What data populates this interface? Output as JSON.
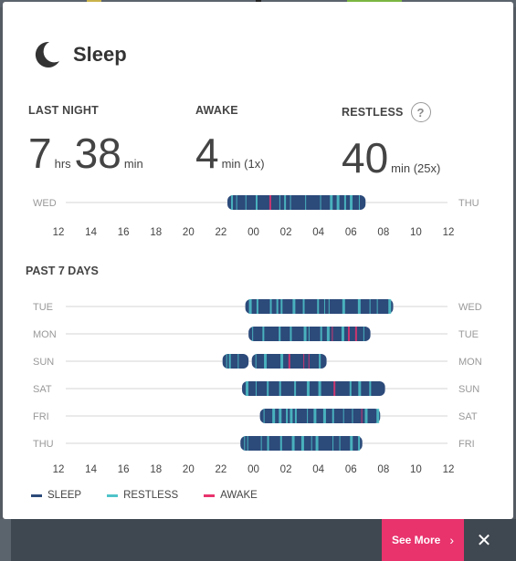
{
  "header": {
    "title": "Sleep",
    "icon": "moon-icon"
  },
  "stats": {
    "last_night": {
      "label": "LAST NIGHT",
      "hours": "7",
      "hours_unit": "hrs",
      "minutes": "38",
      "minutes_unit": "min"
    },
    "awake": {
      "label": "AWAKE",
      "value": "4",
      "unit": "min (1x)"
    },
    "restless": {
      "label": "RESTLESS",
      "value": "40",
      "unit": "min (25x)",
      "help": "?"
    }
  },
  "past_label": "PAST 7 DAYS",
  "axis_ticks": [
    "12",
    "14",
    "16",
    "18",
    "20",
    "22",
    "00",
    "02",
    "04",
    "06",
    "08",
    "10",
    "12"
  ],
  "colors": {
    "sleep": "#2c4a7a",
    "restless": "#4fc3c9",
    "awake": "#e8336d",
    "accent": "#e8336d"
  },
  "chart_data": [
    {
      "type": "timeline",
      "rows": [
        {
          "left": "WED",
          "right": "THU",
          "start": 22.4,
          "end": 30.9
        }
      ],
      "x_ticks": [
        "12",
        "14",
        "16",
        "18",
        "20",
        "22",
        "00",
        "02",
        "04",
        "06",
        "08",
        "10",
        "12"
      ],
      "xlim": [
        12,
        36
      ]
    },
    {
      "type": "timeline",
      "rows": [
        {
          "left": "TUE",
          "right": "WED",
          "start": 23.5,
          "end": 32.6
        },
        {
          "left": "MON",
          "right": "TUE",
          "start": 23.7,
          "end": 31.2
        },
        {
          "left": "SUN",
          "right": "MON",
          "start": 22.1,
          "end": 28.5,
          "gap": [
            23.7,
            23.9
          ]
        },
        {
          "left": "SAT",
          "right": "SUN",
          "start": 23.3,
          "end": 32.1
        },
        {
          "left": "FRI",
          "right": "SAT",
          "start": 24.4,
          "end": 31.8
        },
        {
          "left": "THU",
          "right": "FRI",
          "start": 23.2,
          "end": 30.7
        }
      ],
      "x_ticks": [
        "12",
        "14",
        "16",
        "18",
        "20",
        "22",
        "00",
        "02",
        "04",
        "06",
        "08",
        "10",
        "12"
      ],
      "xlim": [
        12,
        36
      ]
    }
  ],
  "legend": {
    "sleep": "SLEEP",
    "restless": "RESTLESS",
    "awake": "AWAKE"
  },
  "footer": {
    "see_more": "See More",
    "close": "✕"
  }
}
